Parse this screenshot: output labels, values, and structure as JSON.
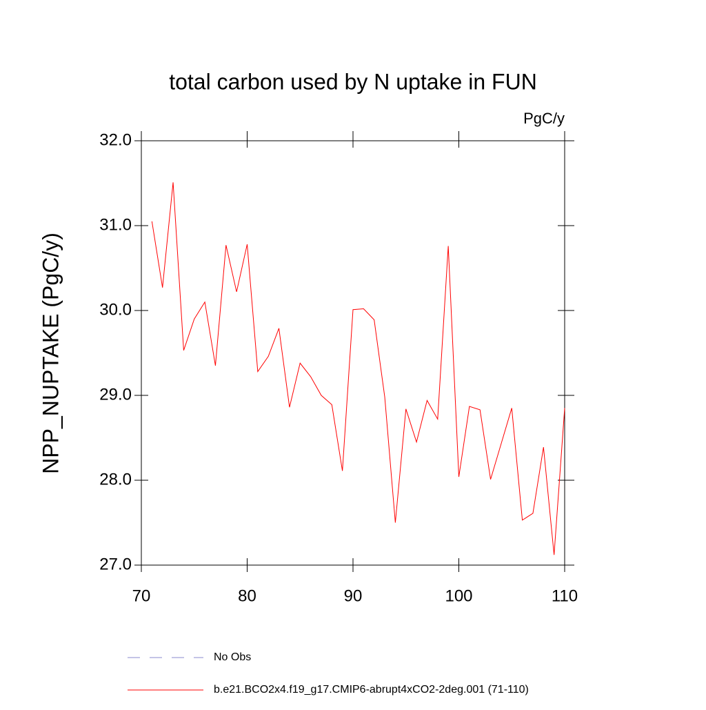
{
  "chart_data": {
    "type": "line",
    "title": "total carbon used by N uptake in FUN",
    "units": "PgC/y",
    "ylabel": "NPP_NUPTAKE  (PgC/y)",
    "x": [
      71,
      72,
      73,
      74,
      75,
      76,
      77,
      78,
      79,
      80,
      81,
      82,
      83,
      84,
      85,
      86,
      87,
      88,
      89,
      90,
      91,
      92,
      93,
      94,
      95,
      96,
      97,
      98,
      99,
      100,
      101,
      102,
      103,
      104,
      105,
      106,
      107,
      108,
      109,
      110
    ],
    "series": [
      {
        "name": "b.e21.BCO2x4.f19_g17.CMIP6-abrupt4xCO2-2deg.001 (71-110)",
        "color": "#ff0000",
        "values": [
          31.05,
          30.27,
          31.51,
          29.53,
          29.9,
          30.1,
          29.35,
          30.77,
          30.22,
          30.78,
          29.28,
          29.46,
          29.79,
          28.86,
          29.38,
          29.22,
          29.0,
          28.89,
          28.11,
          30.01,
          30.02,
          29.89,
          28.98,
          27.5,
          28.84,
          28.45,
          28.94,
          28.72,
          30.76,
          28.04,
          28.87,
          28.83,
          28.01,
          28.43,
          28.85,
          27.53,
          27.61,
          28.39,
          27.12,
          28.85
        ]
      }
    ],
    "legend_only": [
      {
        "name": "No Obs",
        "color": "#8a8acc",
        "dashed": true
      }
    ],
    "xlim": [
      70,
      110
    ],
    "xticks": [
      70,
      80,
      90,
      100,
      110
    ],
    "ylim": [
      27,
      32
    ],
    "yticks": [
      {
        "value": 27,
        "label": "27.0"
      },
      {
        "value": 28,
        "label": "28.0"
      },
      {
        "value": 29,
        "label": "29.0"
      },
      {
        "value": 30,
        "label": "30.0"
      },
      {
        "value": 31,
        "label": "31.0"
      },
      {
        "value": 32,
        "label": "32.0"
      }
    ]
  }
}
